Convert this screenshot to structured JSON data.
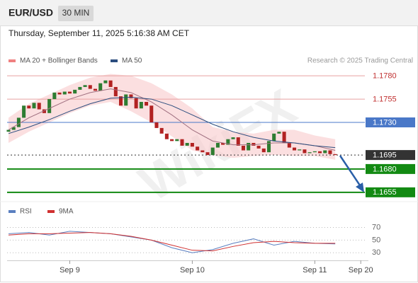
{
  "chart_data": {
    "type": "candlestick",
    "title": "EUR/USD",
    "timeframe": "30 MIN",
    "timestamp": "Thursday, September 11, 2025 5:16:38 AM CET",
    "source": "Research © 2025 Trading Central",
    "watermark": "WikiFX",
    "xlim": [
      0,
      70.5
    ],
    "xticks": [
      {
        "value": 12,
        "label": "Sep 9"
      },
      {
        "value": 36,
        "label": "Sep 10"
      },
      {
        "value": 60,
        "label": "Sep 11"
      },
      {
        "value": 69,
        "label": "Sep 20"
      }
    ],
    "price": {
      "ylim": [
        1.1645,
        1.1793
      ],
      "up_color": "#2e7d32",
      "down_color": "#b22222",
      "open": [
        1.172,
        1.1722,
        1.1725,
        1.1735,
        1.1748,
        1.1745,
        1.1751,
        1.1744,
        1.174,
        1.1755,
        1.1762,
        1.176,
        1.1763,
        1.1761,
        1.1765,
        1.1768,
        1.177,
        1.1766,
        1.1764,
        1.1772,
        1.1775,
        1.1768,
        1.1758,
        1.1748,
        1.176,
        1.1756,
        1.1745,
        1.1752,
        1.1748,
        1.173,
        1.1724,
        1.1718,
        1.1712,
        1.171,
        1.1712,
        1.1705,
        1.1708,
        1.1704,
        1.17,
        1.1698,
        1.1695,
        1.1703,
        1.1708,
        1.1706,
        1.1712,
        1.1714,
        1.1705,
        1.17,
        1.1708,
        1.1705,
        1.1702,
        1.1698,
        1.171,
        1.1718,
        1.172,
        1.1708,
        1.1703,
        1.17,
        1.1701,
        1.1697,
        1.1698,
        1.1699,
        1.1697,
        1.17,
        1.1696
      ],
      "close": [
        1.1722,
        1.1725,
        1.1735,
        1.1748,
        1.1745,
        1.1751,
        1.1744,
        1.174,
        1.1755,
        1.1762,
        1.176,
        1.1763,
        1.1761,
        1.1765,
        1.1768,
        1.177,
        1.1766,
        1.1764,
        1.1772,
        1.1775,
        1.1768,
        1.1758,
        1.1748,
        1.176,
        1.1756,
        1.1745,
        1.1752,
        1.1748,
        1.173,
        1.1724,
        1.1718,
        1.1712,
        1.171,
        1.1712,
        1.1705,
        1.1708,
        1.1704,
        1.17,
        1.1698,
        1.1695,
        1.1703,
        1.1708,
        1.1706,
        1.1712,
        1.1714,
        1.1705,
        1.17,
        1.1708,
        1.1705,
        1.1702,
        1.1698,
        1.171,
        1.1718,
        1.172,
        1.1708,
        1.1703,
        1.17,
        1.1701,
        1.1697,
        1.1698,
        1.1699,
        1.1697,
        1.17,
        1.1696,
        1.1695
      ]
    },
    "bands": {
      "name": "MA 20 + Bollinger Bands",
      "color": "#f08080",
      "fill": "#f9c9cc",
      "x": [
        0,
        4,
        8,
        12,
        16,
        20,
        24,
        28,
        32,
        36,
        40,
        44,
        48,
        52,
        56,
        60,
        64
      ],
      "upper": [
        1.1735,
        1.175,
        1.176,
        1.177,
        1.1778,
        1.1782,
        1.178,
        1.1772,
        1.176,
        1.1745,
        1.1725,
        1.172,
        1.1718,
        1.1722,
        1.1722,
        1.1716,
        1.1712
      ],
      "lower": [
        1.1708,
        1.172,
        1.173,
        1.174,
        1.1748,
        1.1752,
        1.1742,
        1.173,
        1.1715,
        1.17,
        1.1695,
        1.1692,
        1.1694,
        1.1695,
        1.1694,
        1.1694,
        1.169
      ]
    },
    "series": [
      {
        "name": "MA 20",
        "color": "#a07080",
        "x": [
          0,
          4,
          8,
          12,
          16,
          20,
          24,
          28,
          32,
          36,
          40,
          44,
          48,
          52,
          56,
          60,
          64
        ],
        "values": [
          1.1722,
          1.1735,
          1.1745,
          1.1755,
          1.1762,
          1.1766,
          1.1762,
          1.1752,
          1.1738,
          1.1722,
          1.171,
          1.1706,
          1.1706,
          1.1708,
          1.1708,
          1.1705,
          1.17
        ]
      },
      {
        "name": "MA 50",
        "color": "#2b4d7e",
        "x": [
          0,
          4,
          8,
          12,
          16,
          20,
          24,
          28,
          32,
          36,
          40,
          44,
          48,
          52,
          56,
          60,
          64
        ],
        "values": [
          1.1718,
          1.1725,
          1.1733,
          1.1742,
          1.175,
          1.1756,
          1.1757,
          1.1755,
          1.1748,
          1.1738,
          1.1728,
          1.172,
          1.1714,
          1.171,
          1.1708,
          1.1705,
          1.1703
        ]
      }
    ],
    "levels": {
      "values": [
        1.178,
        1.1755,
        1.173,
        1.1695,
        1.168,
        1.1655
      ],
      "value_labels": [
        "1.1780",
        "1.1755",
        "1.1730",
        "1.1695",
        "1.1680",
        "1.1655"
      ],
      "colors": [
        "#e8a0a0",
        "#e8a0a0",
        "#4a78c8",
        "#333333",
        "#128a12",
        "#128a12"
      ]
    },
    "rsi": {
      "ylim": [
        18,
        94
      ],
      "yticks": [
        70,
        50,
        30
      ],
      "series": [
        {
          "name": "RSI",
          "color": "#5a7fc0",
          "x": [
            0,
            4,
            8,
            12,
            16,
            20,
            24,
            28,
            32,
            36,
            40,
            44,
            48,
            52,
            56,
            60,
            64
          ],
          "values": [
            60,
            62,
            58,
            64,
            62,
            60,
            55,
            50,
            38,
            30,
            35,
            45,
            52,
            42,
            48,
            45,
            44
          ]
        },
        {
          "name": "9MA",
          "color": "#d03030",
          "x": [
            0,
            4,
            8,
            12,
            16,
            20,
            24,
            28,
            32,
            36,
            40,
            44,
            48,
            52,
            56,
            60,
            64
          ],
          "values": [
            58,
            60,
            60,
            61,
            62,
            60,
            56,
            50,
            42,
            34,
            33,
            40,
            46,
            48,
            46,
            45,
            45
          ]
        }
      ]
    }
  }
}
